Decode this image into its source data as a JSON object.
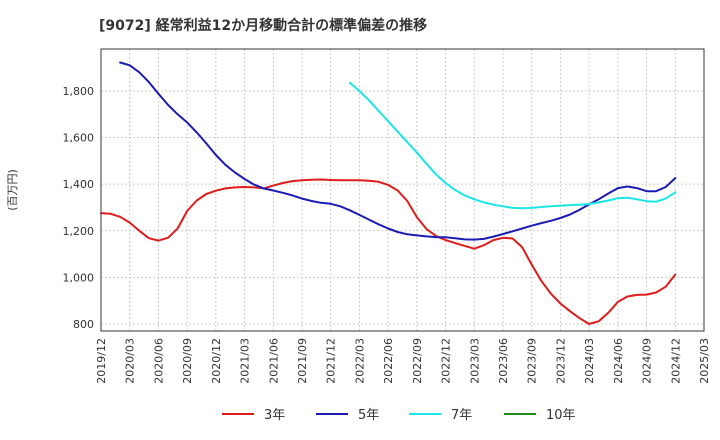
{
  "chart_data": {
    "type": "line",
    "title": "[9072]  経常利益12か月移動合計の標準偏差の推移",
    "ylabel": "(百万円)",
    "xlabel": "",
    "ylim": [
      770,
      1980
    ],
    "y_ticks": [
      800,
      1000,
      1200,
      1400,
      1600,
      1800
    ],
    "y_tick_labels": [
      "800",
      "1,000",
      "1,200",
      "1,400",
      "1,600",
      "1,800"
    ],
    "x_tick_labels": [
      "2019/12",
      "2020/03",
      "2020/06",
      "2020/09",
      "2020/12",
      "2021/03",
      "2021/06",
      "2021/09",
      "2021/12",
      "2022/03",
      "2022/06",
      "2022/09",
      "2022/12",
      "2023/03",
      "2023/06",
      "2023/09",
      "2023/12",
      "2024/03",
      "2024/06",
      "2024/09",
      "2024/12",
      "2025/03"
    ],
    "x_start": "2019/12",
    "x_end": "2025/03",
    "grid": true,
    "legend_position": "bottom",
    "series": [
      {
        "name": "3年",
        "color": "#dd1c1c",
        "x": [
          "2019/12",
          "2020/01",
          "2020/02",
          "2020/03",
          "2020/04",
          "2020/05",
          "2020/06",
          "2020/07",
          "2020/08",
          "2020/09",
          "2020/10",
          "2020/11",
          "2020/12",
          "2021/01",
          "2021/02",
          "2021/03",
          "2021/04",
          "2021/05",
          "2021/06",
          "2021/07",
          "2021/08",
          "2021/09",
          "2021/10",
          "2021/11",
          "2021/12",
          "2022/01",
          "2022/02",
          "2022/03",
          "2022/04",
          "2022/05",
          "2022/06",
          "2022/07",
          "2022/08",
          "2022/09",
          "2022/10",
          "2022/11",
          "2022/12",
          "2023/01",
          "2023/02",
          "2023/03",
          "2023/04",
          "2023/05",
          "2023/06",
          "2023/07",
          "2023/08",
          "2023/09",
          "2023/10",
          "2023/11",
          "2023/12",
          "2024/01",
          "2024/02",
          "2024/03",
          "2024/04",
          "2024/05",
          "2024/06",
          "2024/07",
          "2024/08",
          "2024/09",
          "2024/10",
          "2024/11",
          "2024/12"
        ],
        "values": [
          1276,
          1273,
          1260,
          1235,
          1200,
          1168,
          1158,
          1170,
          1210,
          1285,
          1330,
          1358,
          1372,
          1382,
          1386,
          1388,
          1386,
          1382,
          1394,
          1405,
          1413,
          1417,
          1419,
          1420,
          1418,
          1417,
          1417,
          1417,
          1415,
          1410,
          1397,
          1373,
          1328,
          1258,
          1208,
          1178,
          1160,
          1147,
          1135,
          1123,
          1138,
          1160,
          1170,
          1167,
          1130,
          1055,
          985,
          930,
          888,
          855,
          825,
          800,
          812,
          848,
          895,
          918,
          925,
          926,
          935,
          960,
          1012
        ]
      },
      {
        "name": "5年",
        "color": "#1c1cb4",
        "x": [
          "2020/02",
          "2020/03",
          "2020/04",
          "2020/05",
          "2020/06",
          "2020/07",
          "2020/08",
          "2020/09",
          "2020/10",
          "2020/11",
          "2020/12",
          "2021/01",
          "2021/02",
          "2021/03",
          "2021/04",
          "2021/05",
          "2021/06",
          "2021/07",
          "2021/08",
          "2021/09",
          "2021/10",
          "2021/11",
          "2021/12",
          "2022/01",
          "2022/02",
          "2022/03",
          "2022/04",
          "2022/05",
          "2022/06",
          "2022/07",
          "2022/08",
          "2022/09",
          "2022/10",
          "2022/11",
          "2022/12",
          "2023/01",
          "2023/02",
          "2023/03",
          "2023/04",
          "2023/05",
          "2023/06",
          "2023/07",
          "2023/08",
          "2023/09",
          "2023/10",
          "2023/11",
          "2023/12",
          "2024/01",
          "2024/02",
          "2024/03",
          "2024/04",
          "2024/05",
          "2024/06",
          "2024/07",
          "2024/08",
          "2024/09",
          "2024/10",
          "2024/11",
          "2024/12"
        ],
        "values": [
          1922,
          1910,
          1880,
          1838,
          1788,
          1740,
          1700,
          1665,
          1622,
          1575,
          1525,
          1483,
          1450,
          1422,
          1398,
          1382,
          1373,
          1363,
          1352,
          1338,
          1328,
          1320,
          1316,
          1305,
          1288,
          1268,
          1248,
          1228,
          1210,
          1195,
          1185,
          1180,
          1176,
          1173,
          1172,
          1168,
          1163,
          1162,
          1165,
          1175,
          1186,
          1198,
          1210,
          1222,
          1233,
          1243,
          1255,
          1270,
          1290,
          1313,
          1335,
          1360,
          1383,
          1390,
          1383,
          1370,
          1370,
          1388,
          1426
        ]
      },
      {
        "name": "7年",
        "color": "#1ce6e6",
        "x": [
          "2022/02",
          "2022/03",
          "2022/04",
          "2022/05",
          "2022/06",
          "2022/07",
          "2022/08",
          "2022/09",
          "2022/10",
          "2022/11",
          "2022/12",
          "2023/01",
          "2023/02",
          "2023/03",
          "2023/04",
          "2023/05",
          "2023/06",
          "2023/07",
          "2023/08",
          "2023/09",
          "2023/10",
          "2023/11",
          "2023/12",
          "2024/01",
          "2024/02",
          "2024/03",
          "2024/04",
          "2024/05",
          "2024/06",
          "2024/07",
          "2024/08",
          "2024/09",
          "2024/10",
          "2024/11",
          "2024/12"
        ],
        "values": [
          1835,
          1800,
          1760,
          1715,
          1670,
          1625,
          1580,
          1535,
          1488,
          1442,
          1405,
          1375,
          1352,
          1335,
          1322,
          1312,
          1305,
          1298,
          1297,
          1298,
          1302,
          1305,
          1308,
          1310,
          1312,
          1315,
          1322,
          1330,
          1340,
          1342,
          1335,
          1327,
          1325,
          1338,
          1365
        ]
      },
      {
        "name": "10年",
        "color": "#1c8c1c",
        "x": [],
        "values": []
      }
    ]
  }
}
